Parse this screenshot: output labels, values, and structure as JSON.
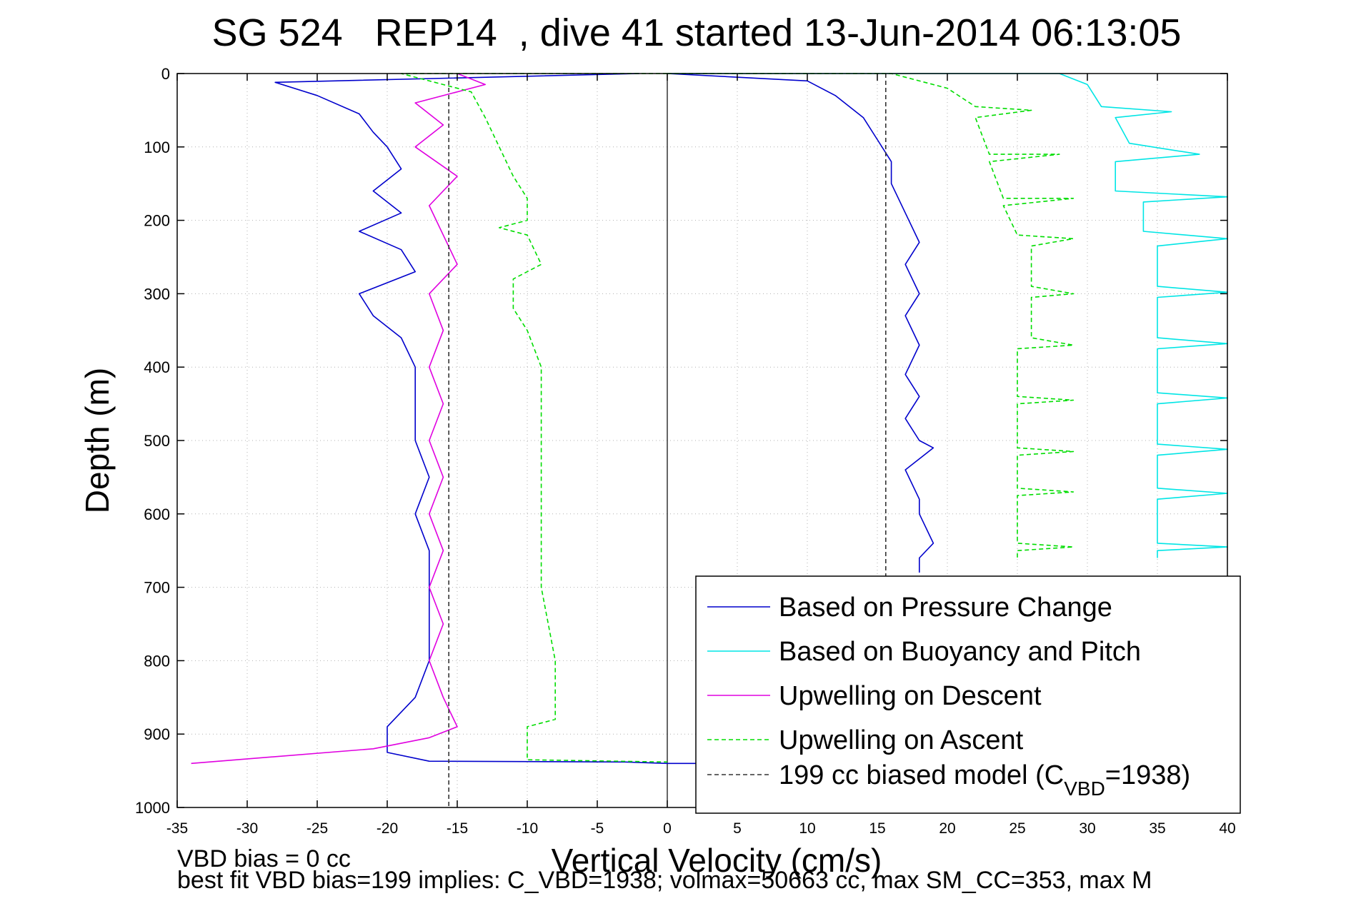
{
  "chart_data": {
    "type": "line",
    "title": "SG 524   REP14  , dive 41 started 13-Jun-2014 06:13:05",
    "xlabel": "Vertical Velocity (cm/s)",
    "ylabel": "Depth (m)",
    "xlim": [
      -35,
      40
    ],
    "ylim": [
      0,
      1000
    ],
    "y_reversed": true,
    "grid": true,
    "legend_position": "bottom-right",
    "xticks": [
      "-35",
      "-30",
      "-25",
      "-20",
      "-15",
      "-10",
      "-5",
      "0",
      "5",
      "10",
      "15",
      "20",
      "25",
      "30",
      "35",
      "40"
    ],
    "yticks": [
      "0",
      "100",
      "200",
      "300",
      "400",
      "500",
      "600",
      "700",
      "800",
      "900",
      "1000"
    ],
    "colors": {
      "pressure": "#0000cc",
      "buoyancy": "#00e5e5",
      "upwelling_descent": "#e000e0",
      "upwelling_ascent": "#00dd00",
      "model": "#333333"
    },
    "series": [
      {
        "name": "Based on Pressure Change",
        "key": "pressure",
        "style": "solid",
        "points": [
          [
            -2,
            0
          ],
          [
            -28,
            12
          ],
          [
            -25,
            30
          ],
          [
            -22,
            55
          ],
          [
            -21,
            80
          ],
          [
            -20,
            100
          ],
          [
            -19,
            130
          ],
          [
            -21,
            160
          ],
          [
            -19,
            190
          ],
          [
            -22,
            215
          ],
          [
            -19,
            240
          ],
          [
            -18,
            270
          ],
          [
            -22,
            300
          ],
          [
            -21,
            330
          ],
          [
            -19,
            360
          ],
          [
            -18,
            400
          ],
          [
            -18,
            450
          ],
          [
            -18,
            500
          ],
          [
            -17,
            550
          ],
          [
            -18,
            600
          ],
          [
            -17,
            650
          ],
          [
            -17,
            700
          ],
          [
            -17,
            750
          ],
          [
            -17,
            800
          ],
          [
            -18,
            850
          ],
          [
            -20,
            890
          ],
          [
            -20,
            925
          ],
          [
            -17,
            937
          ],
          [
            -3,
            938
          ],
          [
            0,
            940
          ],
          [
            5,
            940
          ]
        ]
      },
      {
        "name": "Based on Pressure Change",
        "key": "pressure",
        "style": "solid",
        "points": [
          [
            0,
            0
          ],
          [
            10,
            10
          ],
          [
            12,
            30
          ],
          [
            14,
            60
          ],
          [
            15,
            90
          ],
          [
            16,
            120
          ],
          [
            16,
            150
          ],
          [
            17,
            190
          ],
          [
            18,
            230
          ],
          [
            17,
            260
          ],
          [
            18,
            300
          ],
          [
            17,
            330
          ],
          [
            18,
            370
          ],
          [
            17,
            410
          ],
          [
            18,
            440
          ],
          [
            17,
            470
          ],
          [
            18,
            500
          ],
          [
            19,
            510
          ],
          [
            17,
            540
          ],
          [
            18,
            580
          ],
          [
            18,
            600
          ],
          [
            19,
            640
          ],
          [
            18,
            660
          ],
          [
            18,
            680
          ]
        ]
      },
      {
        "name": "Based on Buoyancy and Pitch",
        "key": "buoyancy",
        "style": "solid",
        "points": [
          [
            0,
            0
          ],
          [
            28,
            0
          ],
          [
            30,
            15
          ],
          [
            31,
            45
          ],
          [
            36,
            52
          ],
          [
            32,
            60
          ],
          [
            33,
            95
          ],
          [
            38,
            110
          ],
          [
            32,
            120
          ],
          [
            32,
            160
          ],
          [
            40,
            168
          ],
          [
            34,
            175
          ],
          [
            34,
            215
          ],
          [
            40,
            225
          ],
          [
            35,
            235
          ],
          [
            35,
            290
          ],
          [
            40,
            298
          ],
          [
            35,
            305
          ],
          [
            35,
            360
          ],
          [
            40,
            368
          ],
          [
            35,
            375
          ],
          [
            35,
            435
          ],
          [
            40,
            442
          ],
          [
            35,
            450
          ],
          [
            35,
            505
          ],
          [
            40,
            512
          ],
          [
            35,
            520
          ],
          [
            35,
            565
          ],
          [
            40,
            572
          ],
          [
            35,
            580
          ],
          [
            35,
            640
          ],
          [
            40,
            645
          ],
          [
            35,
            650
          ],
          [
            35,
            660
          ]
        ]
      },
      {
        "name": "Upwelling on Descent",
        "key": "upwelling_descent",
        "style": "solid",
        "points": [
          [
            -15,
            0
          ],
          [
            -13,
            15
          ],
          [
            -18,
            40
          ],
          [
            -16,
            70
          ],
          [
            -18,
            100
          ],
          [
            -15,
            140
          ],
          [
            -17,
            180
          ],
          [
            -16,
            220
          ],
          [
            -15,
            260
          ],
          [
            -17,
            300
          ],
          [
            -16,
            350
          ],
          [
            -17,
            400
          ],
          [
            -16,
            450
          ],
          [
            -17,
            500
          ],
          [
            -16,
            550
          ],
          [
            -17,
            600
          ],
          [
            -16,
            650
          ],
          [
            -17,
            700
          ],
          [
            -16,
            750
          ],
          [
            -17,
            800
          ],
          [
            -16,
            850
          ],
          [
            -15,
            890
          ],
          [
            -17,
            905
          ],
          [
            -21,
            920
          ],
          [
            -34,
            940
          ]
        ]
      },
      {
        "name": "Upwelling on Ascent",
        "key": "upwelling_ascent",
        "style": "dashed",
        "points": [
          [
            0,
            0
          ],
          [
            -19,
            0
          ],
          [
            -14,
            25
          ],
          [
            -13,
            60
          ],
          [
            -12,
            100
          ],
          [
            -11,
            140
          ],
          [
            -10,
            170
          ],
          [
            -10,
            200
          ],
          [
            -12,
            210
          ],
          [
            -10,
            220
          ],
          [
            -9,
            260
          ],
          [
            -11,
            280
          ],
          [
            -11,
            320
          ],
          [
            -10,
            350
          ],
          [
            -9,
            400
          ],
          [
            -9,
            500
          ],
          [
            -9,
            600
          ],
          [
            -9,
            700
          ],
          [
            -8,
            800
          ],
          [
            -8,
            880
          ],
          [
            -10,
            890
          ],
          [
            -10,
            935
          ],
          [
            0,
            938
          ]
        ]
      },
      {
        "name": "Upwelling on Ascent",
        "key": "upwelling_ascent",
        "style": "dashed",
        "points": [
          [
            0,
            0
          ],
          [
            16,
            0
          ],
          [
            20,
            20
          ],
          [
            22,
            45
          ],
          [
            26,
            50
          ],
          [
            22,
            60
          ],
          [
            23,
            110
          ],
          [
            28,
            110
          ],
          [
            23,
            120
          ],
          [
            24,
            170
          ],
          [
            29,
            170
          ],
          [
            24,
            180
          ],
          [
            25,
            220
          ],
          [
            29,
            225
          ],
          [
            26,
            235
          ],
          [
            26,
            290
          ],
          [
            29,
            300
          ],
          [
            26,
            305
          ],
          [
            26,
            360
          ],
          [
            29,
            370
          ],
          [
            25,
            375
          ],
          [
            25,
            440
          ],
          [
            29,
            445
          ],
          [
            25,
            450
          ],
          [
            25,
            510
          ],
          [
            29,
            515
          ],
          [
            25,
            520
          ],
          [
            25,
            565
          ],
          [
            29,
            570
          ],
          [
            25,
            575
          ],
          [
            25,
            640
          ],
          [
            29,
            645
          ],
          [
            25,
            650
          ],
          [
            25,
            660
          ]
        ]
      },
      {
        "name": "199 cc biased model (C_VBD=1938)",
        "key": "model",
        "style": "dashed",
        "points": [
          [
            -15.6,
            0
          ],
          [
            -15.6,
            1000
          ]
        ]
      },
      {
        "name": "199 cc biased model (C_VBD=1938)",
        "key": "model",
        "style": "dashed",
        "points": [
          [
            15.6,
            0
          ],
          [
            15.6,
            1000
          ]
        ]
      }
    ],
    "legend": [
      {
        "key": "pressure",
        "label": "Based on Pressure Change",
        "style": "solid"
      },
      {
        "key": "buoyancy",
        "label": "Based on Buoyancy and Pitch",
        "style": "solid"
      },
      {
        "key": "upwelling_descent",
        "label": "Upwelling on Descent",
        "style": "solid"
      },
      {
        "key": "upwelling_ascent",
        "label": "Upwelling on Ascent",
        "style": "dashed"
      },
      {
        "key": "model",
        "label_prefix": "199 cc biased model (C",
        "label_sub": "VBD",
        "label_suffix": "=1938)",
        "style": "dashed"
      }
    ]
  },
  "footer": {
    "line1": "VBD bias = 0 cc",
    "line2": "best fit VBD bias=199 implies: C_VBD=1938; volmax=50663 cc, max SM_CC=353, max M"
  }
}
